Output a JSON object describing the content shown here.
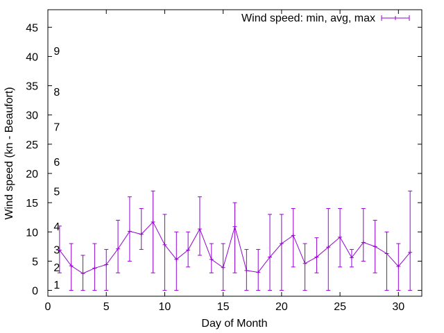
{
  "chart_data": {
    "type": "line",
    "xlabel": "Day of Month",
    "ylabel": "Wind speed (kn - Beaufort)",
    "xlim": [
      0,
      32
    ],
    "ylim": [
      -1,
      48
    ],
    "xticks": [
      0,
      5,
      10,
      15,
      20,
      25,
      30
    ],
    "yticks": [
      0,
      5,
      10,
      15,
      20,
      25,
      30,
      35,
      40,
      45
    ],
    "legend": {
      "placement": "top-right"
    },
    "grid": false,
    "series": [
      {
        "name": "Wind speed: min, avg, max",
        "color": "#9400d3",
        "points": [
          {
            "x": 1,
            "min": 3,
            "avg": 6.9,
            "max": 11
          },
          {
            "x": 2,
            "min": 0,
            "avg": 4.2,
            "max": 8
          },
          {
            "x": 3,
            "min": 0,
            "avg": 2.9,
            "max": 6
          },
          {
            "x": 4,
            "min": 0,
            "avg": 3.8,
            "max": 8
          },
          {
            "x": 5,
            "min": 0,
            "avg": 4.4,
            "max": 7
          },
          {
            "x": 6,
            "min": 3,
            "avg": 7.1,
            "max": 12
          },
          {
            "x": 7,
            "min": 5,
            "avg": 10.1,
            "max": 16
          },
          {
            "x": 8,
            "min": 7,
            "avg": 9.6,
            "max": 14
          },
          {
            "x": 9,
            "min": 3,
            "avg": 11.7,
            "max": 17
          },
          {
            "x": 10,
            "min": 0,
            "avg": 7.8,
            "max": 13
          },
          {
            "x": 11,
            "min": 0,
            "avg": 5.3,
            "max": 10
          },
          {
            "x": 12,
            "min": 4,
            "avg": 6.9,
            "max": 10
          },
          {
            "x": 13,
            "min": 6,
            "avg": 10.5,
            "max": 16
          },
          {
            "x": 14,
            "min": 3,
            "avg": 5.3,
            "max": 8
          },
          {
            "x": 15,
            "min": 0,
            "avg": 3.9,
            "max": 8
          },
          {
            "x": 16,
            "min": 3,
            "avg": 10.9,
            "max": 15
          },
          {
            "x": 17,
            "min": 0,
            "avg": 3.4,
            "max": 7
          },
          {
            "x": 18,
            "min": 0,
            "avg": 3.1,
            "max": 7
          },
          {
            "x": 19,
            "min": 0,
            "avg": 5.7,
            "max": 13
          },
          {
            "x": 20,
            "min": 0,
            "avg": 8.0,
            "max": 13
          },
          {
            "x": 21,
            "min": 4,
            "avg": 9.4,
            "max": 14
          },
          {
            "x": 22,
            "min": 0,
            "avg": 4.6,
            "max": 8
          },
          {
            "x": 23,
            "min": 3,
            "avg": 5.7,
            "max": 9
          },
          {
            "x": 24,
            "min": 0,
            "avg": 7.4,
            "max": 14
          },
          {
            "x": 25,
            "min": 4,
            "avg": 9.1,
            "max": 14
          },
          {
            "x": 26,
            "min": 4,
            "avg": 5.6,
            "max": 7
          },
          {
            "x": 27,
            "min": 5,
            "avg": 8.2,
            "max": 14
          },
          {
            "x": 28,
            "min": 3,
            "avg": 7.5,
            "max": 12
          },
          {
            "x": 29,
            "min": 0,
            "avg": 6.3,
            "max": 10
          },
          {
            "x": 30,
            "min": 0,
            "avg": 4.1,
            "max": 8
          },
          {
            "x": 31,
            "min": 0,
            "avg": 6.5,
            "max": 17
          }
        ]
      }
    ],
    "annotations": [
      {
        "text": "1",
        "y": 1
      },
      {
        "text": "2",
        "y": 4
      },
      {
        "text": "3",
        "y": 7
      },
      {
        "text": "4",
        "y": 11
      },
      {
        "text": "5",
        "y": 17
      },
      {
        "text": "6",
        "y": 22
      },
      {
        "text": "7",
        "y": 28
      },
      {
        "text": "8",
        "y": 34
      },
      {
        "text": "9",
        "y": 41
      }
    ]
  }
}
